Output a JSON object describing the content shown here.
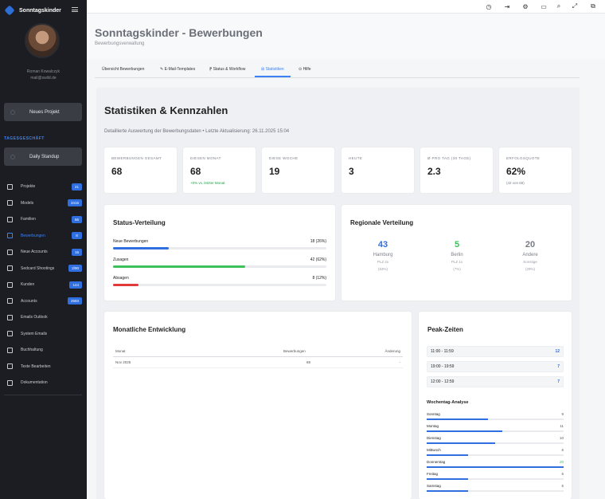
{
  "sidebar": {
    "brand": "Sonntagskinder",
    "user_name": "Roman Kowalczyk",
    "user_email": "mail@swild.de",
    "new_project": "Neues Projekt",
    "section_label": "TAGESGESCHÄFT",
    "daily_standup": "Daily Standup",
    "items": [
      {
        "label": "Projekte",
        "badge": "21",
        "icon": "folder-icon"
      },
      {
        "label": "Models",
        "badge": "3416",
        "icon": "star-icon"
      },
      {
        "label": "Familien",
        "badge": "66",
        "icon": "family-icon"
      },
      {
        "label": "Bewerbungen",
        "badge": "8",
        "icon": "clipboard-icon",
        "active": true
      },
      {
        "label": "Neue Accounts",
        "badge": "16",
        "icon": "users-icon"
      },
      {
        "label": "Sedcard Shootings",
        "badge": "2/90",
        "icon": "calendar-icon"
      },
      {
        "label": "Kunden",
        "badge": "144",
        "icon": "customer-icon"
      },
      {
        "label": "Accounts",
        "badge": "2593",
        "icon": "accounts-icon"
      },
      {
        "label": "Emails Outlook",
        "badge": "",
        "icon": "mail-icon"
      },
      {
        "label": "System Emails",
        "badge": "",
        "icon": "envelope-icon"
      },
      {
        "label": "Buchhaltung",
        "badge": "",
        "icon": "ledger-icon"
      },
      {
        "label": "Texte Bearbeiten",
        "badge": "",
        "icon": "edit-icon"
      },
      {
        "label": "Dokumentation",
        "badge": "",
        "icon": "doc-icon"
      }
    ]
  },
  "topbar": {
    "icons": [
      "clock-icon",
      "logout-icon",
      "gear-icon",
      "inbox-icon",
      "search-icon",
      "fullscreen-icon",
      "windows-icon"
    ]
  },
  "header": {
    "title": "Sonntagskinder - Bewerbungen",
    "subtitle": "Bewerbungsverwaltung"
  },
  "tabs": [
    {
      "label": "Übersicht Bewerbungen"
    },
    {
      "label": "✎ E-Mail-Templates"
    },
    {
      "label": "⁋ Status & Workflow"
    },
    {
      "label": "⊞ Statistiken",
      "active": true
    },
    {
      "label": "⊙ Hilfe"
    }
  ],
  "stats": {
    "title": "Statistiken & Kennzahlen",
    "subtitle": "Detaillierte Auswertung der Bewerbungsdaten • Letzte Aktualisierung: 26.11.2025 15:04"
  },
  "kpis": [
    {
      "label": "BEWERBUNGEN GESAMT",
      "value": "68",
      "note": ""
    },
    {
      "label": "DIESEN MONAT",
      "value": "68",
      "note": "+0% vs. letzter Monat"
    },
    {
      "label": "DIESE WOCHE",
      "value": "19",
      "note": ""
    },
    {
      "label": "HEUTE",
      "value": "3",
      "note": ""
    },
    {
      "label": "Ø PRO TAG (30 TAGE)",
      "value": "2.3",
      "note": ""
    },
    {
      "label": "ERFOLGSQUOTE",
      "value": "62%",
      "note": "(42 von 68)"
    }
  ],
  "status_distribution": {
    "title": "Status-Verteilung",
    "rows": [
      {
        "label": "Neue Bewerbungen",
        "value": "18 (26%)",
        "fraction": 0.26,
        "color": "#2f6fe0"
      },
      {
        "label": "Zusagen",
        "value": "42 (62%)",
        "fraction": 0.62,
        "color": "#3ec05b"
      },
      {
        "label": "Absagen",
        "value": "8 (12%)",
        "fraction": 0.12,
        "color": "#e23a3a"
      }
    ]
  },
  "regional": {
    "title": "Regionale Verteilung",
    "regions": [
      {
        "value": "43",
        "name": "Hamburg",
        "sub1": "PLZ 2x",
        "sub2": "(63%)",
        "color": "#2f6fe0"
      },
      {
        "value": "5",
        "name": "Berlin",
        "sub1": "PLZ 1x",
        "sub2": "(7%)",
        "color": "#3ec05b"
      },
      {
        "value": "20",
        "name": "Andere",
        "sub1": "Sonstige",
        "sub2": "(29%)",
        "color": "#777b83"
      }
    ]
  },
  "monthly": {
    "title": "Monatliche Entwicklung",
    "headers": [
      "Monat",
      "Bewerbungen",
      "Änderung"
    ],
    "rows": [
      {
        "month": "Nov 2025",
        "count": "68",
        "change": "-"
      }
    ]
  },
  "peak": {
    "title": "Peak-Zeiten",
    "rows": [
      {
        "time": "11:00 - 11:59",
        "count": "12"
      },
      {
        "time": "19:00 - 19:59",
        "count": "7"
      },
      {
        "time": "12:00 - 12:59",
        "count": "7"
      }
    ],
    "weekday_title": "Wochentag-Analyse",
    "weekdays": [
      {
        "label": "Sonntag",
        "value": "9",
        "fraction": 0.45
      },
      {
        "label": "Montag",
        "value": "11",
        "fraction": 0.55
      },
      {
        "label": "Dienstag",
        "value": "10",
        "fraction": 0.5
      },
      {
        "label": "Mittwoch",
        "value": "6",
        "fraction": 0.3
      },
      {
        "label": "Donnerstag",
        "value": "20",
        "fraction": 1.0,
        "highlight": true
      },
      {
        "label": "Freitag",
        "value": "6",
        "fraction": 0.3
      },
      {
        "label": "Samstag",
        "value": "6",
        "fraction": 0.3
      }
    ]
  }
}
